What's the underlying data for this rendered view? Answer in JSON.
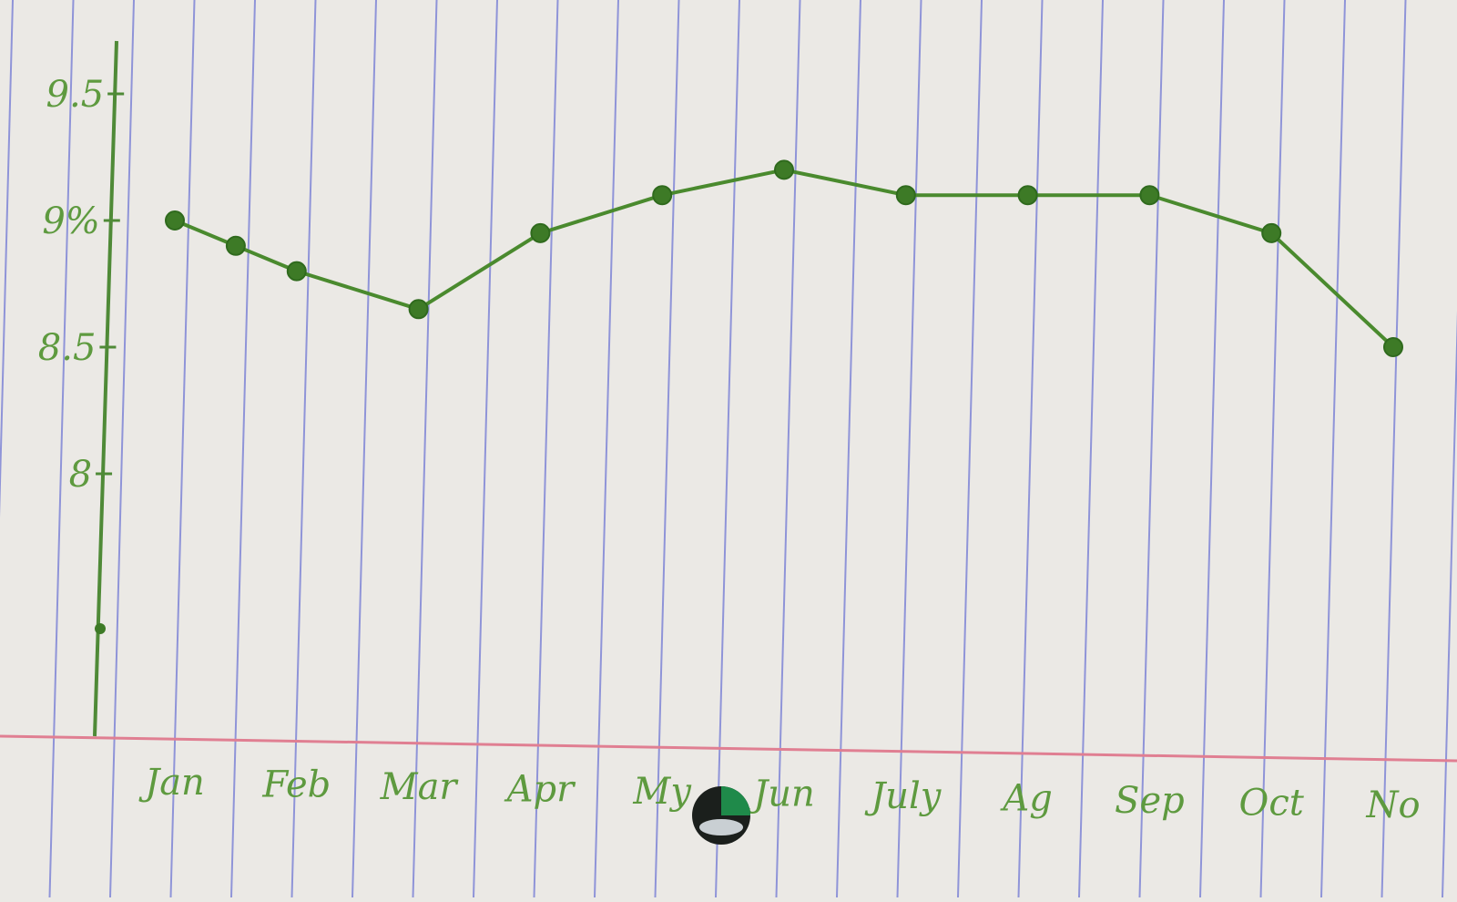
{
  "chart_data": {
    "type": "line",
    "title": "",
    "xlabel": "",
    "ylabel": "",
    "categories": [
      "Jan",
      "Feb",
      "Mar",
      "Apr",
      "My",
      "Jun",
      "July",
      "Ag",
      "Sep",
      "Oct",
      "No"
    ],
    "x": [
      1,
      1.5,
      2,
      3,
      4,
      5,
      6,
      7,
      8,
      9,
      10,
      11
    ],
    "series": [
      {
        "name": "",
        "values": [
          9.0,
          8.9,
          8.8,
          8.65,
          8.95,
          9.1,
          9.2,
          9.1,
          9.1,
          9.1,
          8.95,
          8.5
        ]
      }
    ],
    "yticks": [
      {
        "value": 9.5,
        "label": "9.5"
      },
      {
        "value": 9.0,
        "label": "9%"
      },
      {
        "value": 8.5,
        "label": "8.5"
      },
      {
        "value": 8.0,
        "label": "8"
      }
    ],
    "ylim": [
      7.0,
      9.8
    ],
    "grid": false,
    "legend": "none",
    "colors": {
      "line": "#4a8a2e",
      "marker": "#3d7a26",
      "axis": "#4f8a37",
      "label": "#5e9a3f",
      "paper": "#ebe9e5",
      "rule": "#7f86d6",
      "margin": "#e07f92"
    }
  }
}
